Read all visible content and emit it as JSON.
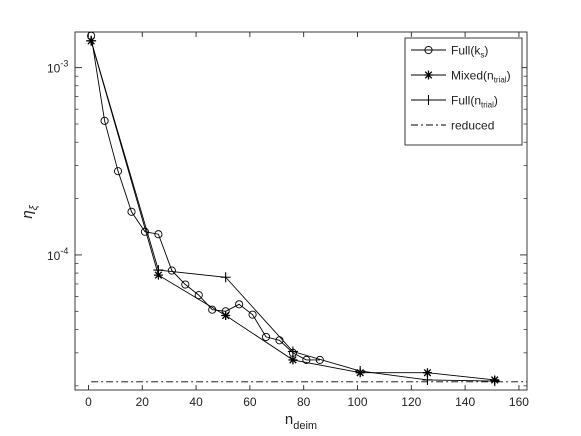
{
  "chart_data": {
    "type": "line",
    "xlabel": "n",
    "xlabel_sub": "deim",
    "ylabel": "η",
    "ylabel_sub": "ξ",
    "xlim": [
      -5,
      163
    ],
    "ylim": [
      1.9e-05,
      0.00155
    ],
    "y_scale": "log",
    "x_ticks": [
      0,
      20,
      40,
      60,
      80,
      100,
      120,
      140,
      160
    ],
    "x_tick_labels": [
      "0",
      "20",
      "40",
      "60",
      "80",
      "100",
      "120",
      "140",
      "160"
    ],
    "y_ticks": [
      0.0001,
      0.001
    ],
    "y_tick_labels": [
      {
        "base": "10",
        "exp": "-4"
      },
      {
        "base": "10",
        "exp": "-3"
      }
    ],
    "grid": false,
    "legend_position": "top-right",
    "series": [
      {
        "name": "Full(k",
        "name_sub": "s",
        "name_end": ")",
        "marker": "circle",
        "color": "#000000",
        "x": [
          1,
          6,
          11,
          16,
          21,
          26,
          31,
          36,
          41,
          46,
          51,
          56,
          61,
          66,
          71,
          76,
          81,
          86
        ],
        "y": [
          0.00148,
          0.00052,
          0.00028,
          0.00017,
          0.000133,
          0.000129,
          8.25e-05,
          6.95e-05,
          6.1e-05,
          5.1e-05,
          5e-05,
          5.45e-05,
          4.8e-05,
          3.65e-05,
          3.5e-05,
          3e-05,
          2.75e-05,
          2.75e-05
        ]
      },
      {
        "name": "Mixed(n",
        "name_sub": "trial",
        "name_end": ")",
        "marker": "star",
        "color": "#000000",
        "x": [
          1,
          26,
          51,
          76,
          101,
          126,
          151
        ],
        "y": [
          0.00139,
          7.8e-05,
          4.75e-05,
          2.75e-05,
          2.35e-05,
          2.35e-05,
          2.15e-05
        ]
      },
      {
        "name": "Full(n",
        "name_sub": "trial",
        "name_end": ")",
        "marker": "plus",
        "color": "#000000",
        "x": [
          1,
          26,
          51,
          76,
          101,
          126,
          151
        ],
        "y": [
          0.00139,
          8.3e-05,
          7.6e-05,
          3.05e-05,
          2.4e-05,
          2.15e-05,
          2.12e-05
        ]
      },
      {
        "name": "reduced",
        "name_sub": "",
        "name_end": "",
        "marker": "none",
        "line_style": "dashdot",
        "color": "#000000",
        "x": [
          1,
          163
        ],
        "y": [
          2.1e-05,
          2.1e-05
        ]
      }
    ]
  }
}
